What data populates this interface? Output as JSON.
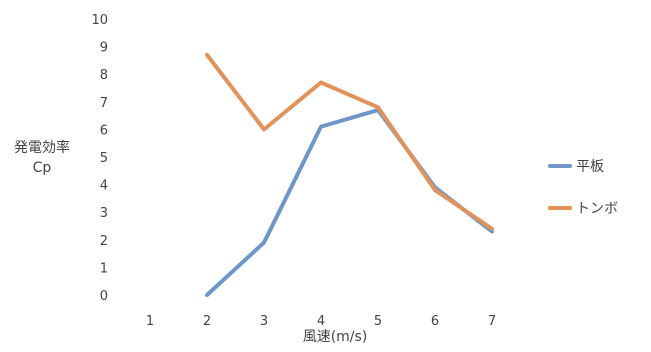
{
  "chart_data": {
    "type": "line",
    "x": [
      1,
      2,
      3,
      4,
      5,
      6,
      7
    ],
    "categories": [
      "1",
      "2",
      "3",
      "4",
      "5",
      "6",
      "7"
    ],
    "ylim": [
      0,
      10
    ],
    "yticks": [
      "0",
      "1",
      "2",
      "3",
      "4",
      "5",
      "6",
      "7",
      "8",
      "9",
      "10"
    ],
    "xlabel": "風速(m/s)",
    "ylabel_line1": "発電効率",
    "ylabel_line2": "Cp",
    "grid": false,
    "legend_position": "right",
    "series": [
      {
        "name": "平板",
        "color": "#6f96c9",
        "values": [
          null,
          0.0,
          1.9,
          6.1,
          6.7,
          3.9,
          2.3
        ]
      },
      {
        "name": "トンボ",
        "color": "#e0935a",
        "values": [
          null,
          8.7,
          6.0,
          7.7,
          6.8,
          3.8,
          2.4
        ]
      }
    ]
  }
}
